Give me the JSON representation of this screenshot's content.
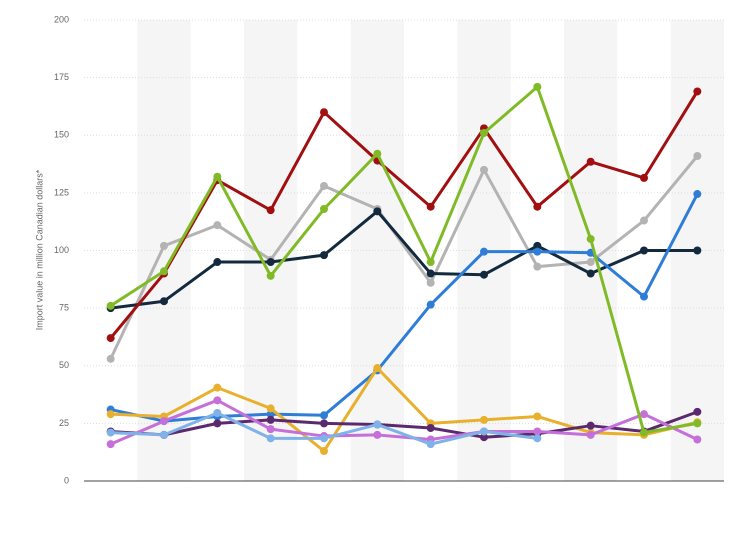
{
  "chart_data": {
    "type": "line",
    "y_label": "Import value in million Canadian dollars*",
    "categories": [
      null,
      null,
      null,
      null,
      null,
      null,
      null,
      null,
      null,
      null,
      null,
      null
    ],
    "ylim": [
      0,
      200
    ],
    "yticks": [
      0,
      25,
      50,
      75,
      100,
      125,
      150,
      175,
      200
    ],
    "grid": true,
    "series": [
      {
        "color": "#b3b3b3",
        "values": [
          53,
          102,
          111,
          96,
          128,
          118,
          86,
          135,
          93,
          95,
          113,
          141
        ]
      },
      {
        "color": "#13293d",
        "values": [
          75,
          78,
          95,
          95,
          98,
          117,
          90,
          89.5,
          102,
          90,
          100,
          100
        ]
      },
      {
        "color": "#2e7dd7",
        "values": [
          31,
          26,
          28,
          29,
          28.5,
          48,
          76.5,
          99.5,
          99.5,
          99,
          80,
          124.5
        ]
      },
      {
        "color": "#e8b02c",
        "values": [
          29,
          28,
          40.5,
          31.5,
          13,
          49,
          25,
          26.5,
          28,
          21,
          20,
          25.5
        ]
      },
      {
        "color": "#5b2a6e",
        "values": [
          21.5,
          20,
          25,
          26.5,
          25,
          24.5,
          23,
          19,
          20.5,
          24,
          21.5,
          30
        ]
      },
      {
        "color": "#c56fd8",
        "values": [
          16,
          26,
          35,
          22.5,
          19.5,
          20,
          18,
          21.5,
          21.5,
          20,
          29,
          18
        ]
      },
      {
        "color": "#7fb2e8",
        "values": [
          21,
          20,
          29.5,
          18.5,
          18.5,
          24.5,
          16,
          21.5,
          18.5,
          null,
          null,
          null
        ]
      },
      {
        "color": "#a10f10",
        "values": [
          62,
          90,
          130.5,
          117.5,
          160,
          139,
          119,
          153,
          119,
          138.5,
          131.5,
          169
        ]
      },
      {
        "color": "#80bb27",
        "values": [
          76,
          91,
          132,
          89,
          118,
          142,
          95,
          151,
          171,
          105,
          21,
          25
        ]
      }
    ]
  }
}
